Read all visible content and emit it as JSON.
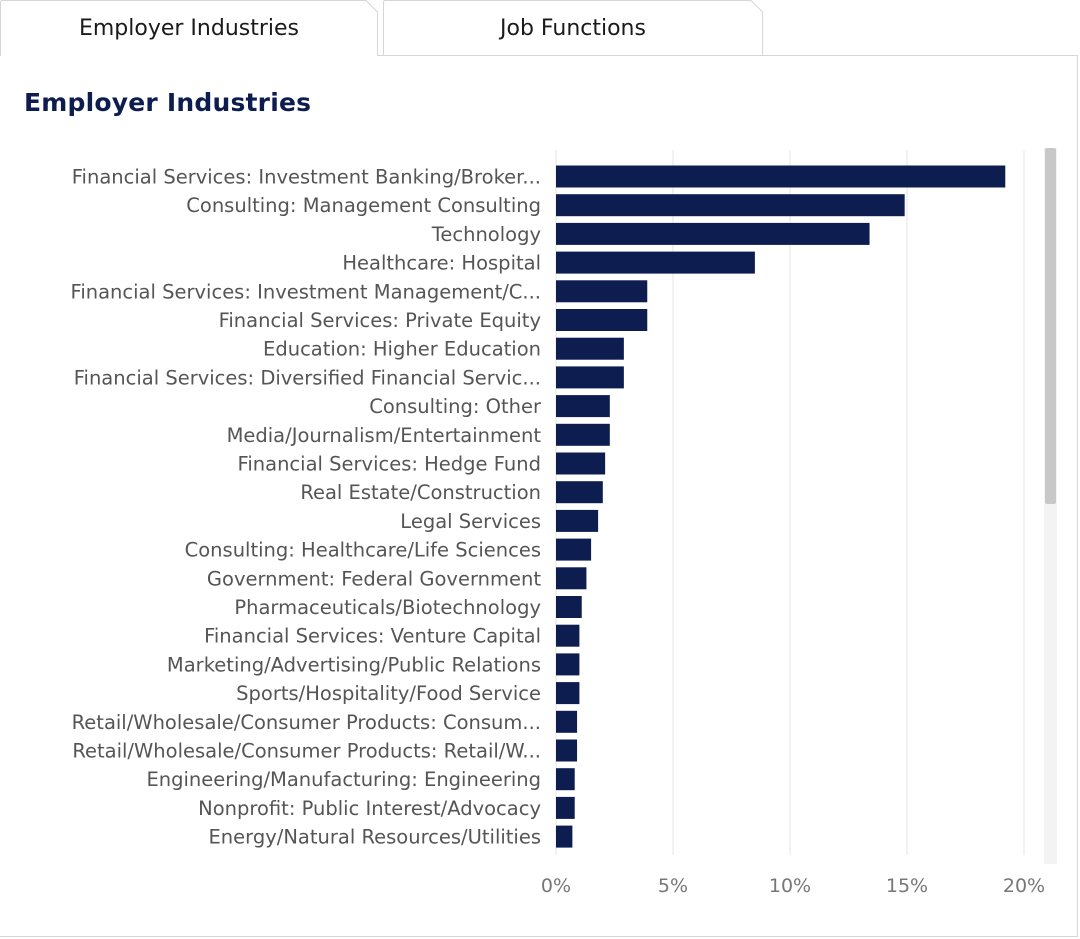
{
  "tabs": [
    {
      "label": "Employer Industries",
      "active": true
    },
    {
      "label": "Job Functions",
      "active": false
    }
  ],
  "colors": {
    "bar": "#0d1d50",
    "title": "#0d1d50",
    "grid": "#e6e6e6"
  },
  "chart_data": {
    "type": "bar",
    "orientation": "horizontal",
    "title": "Employer Industries",
    "xlabel": "",
    "ylabel": "",
    "xlim": [
      0,
      20
    ],
    "x_ticks": [
      0,
      5,
      10,
      15,
      20
    ],
    "x_tick_labels": [
      "0%",
      "5%",
      "10%",
      "15%",
      "20%"
    ],
    "grid": "vertical",
    "categories": [
      "Financial Services: Investment Banking/Broker...",
      "Consulting: Management Consulting",
      "Technology",
      "Healthcare: Hospital",
      "Financial Services: Investment Management/C...",
      "Financial Services: Private Equity",
      "Education: Higher Education",
      "Financial Services: Diversified Financial Servic...",
      "Consulting: Other",
      "Media/Journalism/Entertainment",
      "Financial Services: Hedge Fund",
      "Real Estate/Construction",
      "Legal Services",
      "Consulting: Healthcare/Life Sciences",
      "Government: Federal Government",
      "Pharmaceuticals/Biotechnology",
      "Financial Services: Venture Capital",
      "Marketing/Advertising/Public Relations",
      "Sports/Hospitality/Food Service",
      "Retail/Wholesale/Consumer Products: Consum...",
      "Retail/Wholesale/Consumer Products: Retail/W...",
      "Engineering/Manufacturing: Engineering",
      "Nonprofit: Public Interest/Advocacy",
      "Energy/Natural Resources/Utilities"
    ],
    "values": [
      19.2,
      14.9,
      13.4,
      8.5,
      3.9,
      3.9,
      2.9,
      2.9,
      2.3,
      2.3,
      2.1,
      2.0,
      1.8,
      1.5,
      1.3,
      1.1,
      1.0,
      1.0,
      1.0,
      0.9,
      0.9,
      0.8,
      0.8,
      0.7
    ],
    "value_unit": "%"
  }
}
